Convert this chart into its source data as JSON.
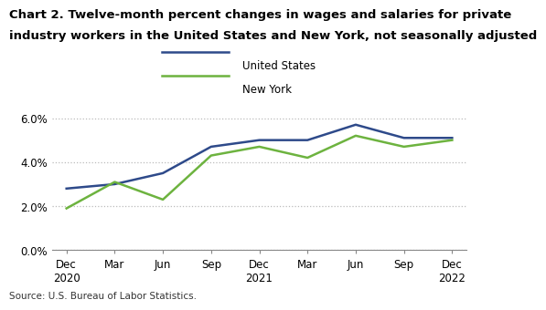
{
  "title_line1": "Chart 2. Twelve-month percent changes in wages and salaries for private",
  "title_line2": "industry workers in the United States and New York, not seasonally adjusted",
  "source": "Source: U.S. Bureau of Labor Statistics.",
  "x_labels": [
    "Dec\n2020",
    "Mar",
    "Jun",
    "Sep",
    "Dec\n2021",
    "Mar",
    "Jun",
    "Sep",
    "Dec\n2022"
  ],
  "us_values": [
    0.028,
    0.03,
    0.035,
    0.047,
    0.05,
    0.05,
    0.057,
    0.051,
    0.051
  ],
  "ny_values": [
    0.019,
    0.031,
    0.023,
    0.043,
    0.047,
    0.042,
    0.052,
    0.047,
    0.05
  ],
  "us_color": "#2E4A8A",
  "ny_color": "#6DB33F",
  "ylim": [
    0.0,
    0.065
  ],
  "yticks": [
    0.0,
    0.02,
    0.04,
    0.06
  ],
  "ytick_labels": [
    "0.0%",
    "2.0%",
    "4.0%",
    "6.0%"
  ],
  "legend_us": "United States",
  "legend_ny": "New York",
  "title_fontsize": 9.5,
  "axis_fontsize": 8.5,
  "legend_fontsize": 8.5,
  "source_fontsize": 7.5,
  "line_width": 1.8,
  "background_color": "#FFFFFF",
  "grid_color": "#BBBBBB"
}
